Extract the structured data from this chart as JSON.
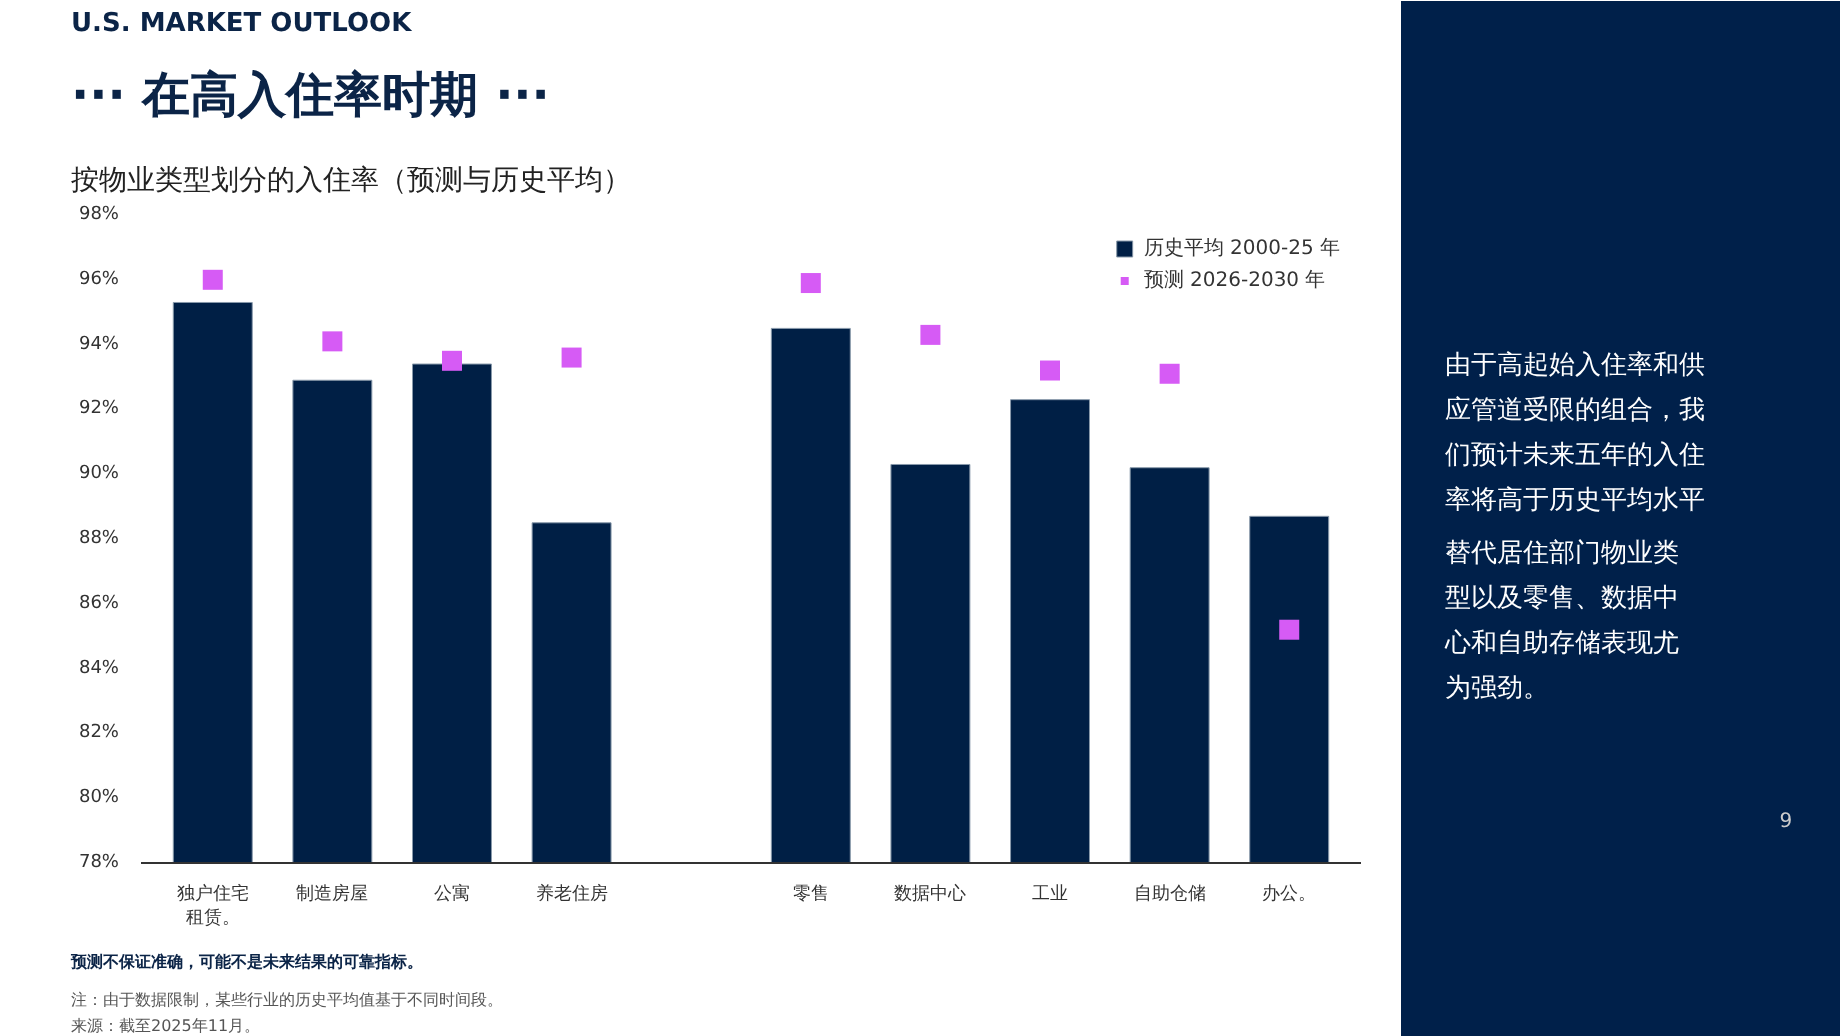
{
  "chart_data": {
    "type": "bar",
    "title": "··· 在高入住率时期 ···",
    "subtitle": "按物业类型划分的入住率（预测与历史平均）",
    "categories": [
      "独户住宅租赁。",
      "制造房屋",
      "公寓",
      "养老住房",
      null,
      "零售",
      "数据中心",
      "工业",
      "自助仓储",
      "办公。"
    ],
    "series": [
      {
        "name": "历史平均 2000-25 年",
        "color": "#001f45",
        "values": [
          95.3,
          92.9,
          93.4,
          88.5,
          null,
          94.5,
          90.3,
          92.3,
          90.2,
          88.7
        ]
      },
      {
        "name": "预测 2026-2030 年",
        "type": "scatter",
        "marker": "square",
        "color": "#d65bf5",
        "values": [
          96.0,
          94.1,
          93.5,
          93.6,
          null,
          95.9,
          94.3,
          93.2,
          93.1,
          85.2
        ]
      }
    ],
    "ylim": [
      78,
      98
    ],
    "yticks": [
      {
        "value": 78,
        "label": "78%"
      },
      {
        "value": 80,
        "label": "80%"
      },
      {
        "value": 82,
        "label": "82%"
      },
      {
        "value": 84,
        "label": "84%"
      },
      {
        "value": 86,
        "label": "86%"
      },
      {
        "value": 88,
        "label": "88%"
      },
      {
        "value": 90,
        "label": "90%"
      },
      {
        "value": 92,
        "label": "92%"
      },
      {
        "value": 94,
        "label": "94%"
      },
      {
        "value": 96,
        "label": "96%"
      },
      {
        "value": 98,
        "label": "98%"
      }
    ],
    "grid": false,
    "legend": "top right",
    "annotations": [
      "U.S. MARKET OUTLOOK",
      "由于高起始入住率和供应管道受限的组合，我们预计未来五年的入住率将高于历史平均水平。",
      "替代居住部门物业类型以及零售、数据中心和自助存储表现尤为强劲。",
      "预测不保证准确，可能不是未来结果的可靠指标。",
      "注：由于数据限制，某些行业的历史平均值基于不同时间段。",
      "来源：截至2025年11月。",
      "9"
    ]
  }
}
